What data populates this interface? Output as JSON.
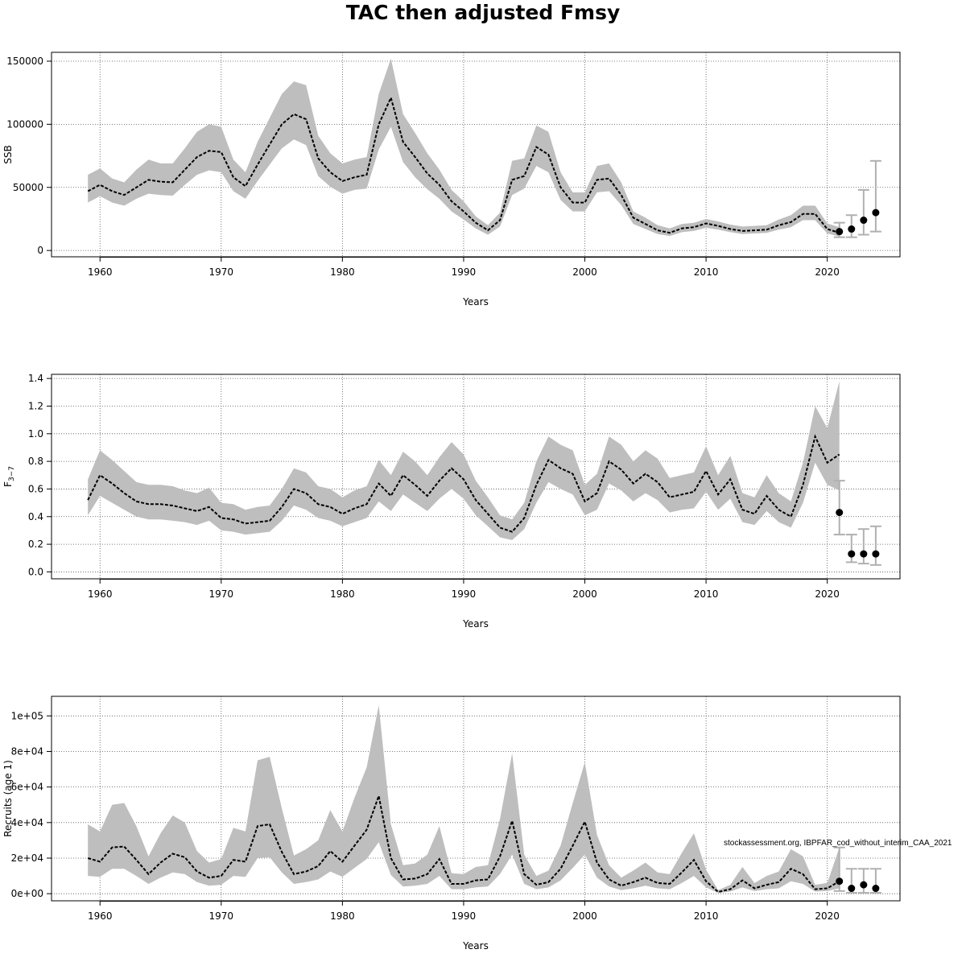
{
  "title": "TAC then adjusted Fmsy",
  "note": "stockassessment.org, IBPFAR_cod_without_interim_CAA_2021",
  "colors": {
    "band": "#bebebe",
    "line": "#000000",
    "grid": "#555555",
    "errorbar": "#b0b0b0",
    "point": "#000000"
  },
  "chart_data": [
    {
      "type": "line",
      "xlabel": "Years",
      "ylabel": "SSB",
      "xlim": [
        1956,
        2026
      ],
      "ylim": [
        -5000,
        157000
      ],
      "xticks": [
        1960,
        1970,
        1980,
        1990,
        2000,
        2010,
        2020
      ],
      "yticks": [
        0,
        50000,
        100000,
        150000
      ],
      "ytick_labels": [
        "0",
        "50000",
        "100000",
        "150000"
      ],
      "x": [
        1959,
        1960,
        1961,
        1962,
        1963,
        1964,
        1965,
        1966,
        1967,
        1968,
        1969,
        1970,
        1971,
        1972,
        1973,
        1974,
        1975,
        1976,
        1977,
        1978,
        1979,
        1980,
        1981,
        1982,
        1983,
        1984,
        1985,
        1986,
        1987,
        1988,
        1989,
        1990,
        1991,
        1992,
        1993,
        1994,
        1995,
        1996,
        1997,
        1998,
        1999,
        2000,
        2001,
        2002,
        2003,
        2004,
        2005,
        2006,
        2007,
        2008,
        2009,
        2010,
        2011,
        2012,
        2013,
        2014,
        2015,
        2016,
        2017,
        2018,
        2019,
        2020,
        2021
      ],
      "estimate": [
        47000,
        52000,
        47000,
        44000,
        50000,
        56000,
        54500,
        54000,
        64000,
        74000,
        79000,
        78000,
        58000,
        51000,
        68000,
        84000,
        100000,
        108000,
        104000,
        73000,
        62000,
        55000,
        58000,
        60000,
        100000,
        121000,
        86000,
        74000,
        61000,
        52000,
        39000,
        31000,
        22000,
        16000,
        24000,
        56000,
        59000,
        82000,
        76000,
        50000,
        38000,
        38000,
        56000,
        57000,
        44000,
        26000,
        21000,
        16000,
        14000,
        17500,
        18500,
        21500,
        19500,
        17000,
        15500,
        16000,
        16500,
        20000,
        22500,
        29000,
        29000,
        17000,
        14000
      ],
      "lower": [
        38000,
        43000,
        38000,
        35500,
        41000,
        45000,
        44000,
        43500,
        52000,
        60000,
        63500,
        62000,
        47000,
        41000,
        55000,
        68000,
        81000,
        88000,
        83500,
        59000,
        50500,
        45000,
        48000,
        49000,
        80000,
        98000,
        70000,
        58000,
        48500,
        41000,
        31000,
        24500,
        17500,
        12500,
        19000,
        44000,
        49000,
        67000,
        62000,
        40000,
        31000,
        31000,
        46000,
        47000,
        36000,
        21000,
        17000,
        13000,
        11500,
        14500,
        15500,
        18000,
        16500,
        14500,
        13000,
        13500,
        14000,
        16500,
        18500,
        24000,
        24000,
        13500,
        11000
      ],
      "upper": [
        60000,
        65000,
        57000,
        54000,
        64000,
        72000,
        69000,
        69000,
        81000,
        94000,
        100000,
        98000,
        72000,
        62000,
        86000,
        105000,
        124000,
        134000,
        131000,
        91000,
        77000,
        69000,
        72000,
        74000,
        124000,
        152000,
        108000,
        93000,
        77000,
        64000,
        48000,
        39000,
        27000,
        20000,
        30000,
        71000,
        73000,
        99000,
        94000,
        62000,
        46000,
        46000,
        67000,
        69000,
        54000,
        31000,
        26000,
        20000,
        17500,
        21000,
        22000,
        25000,
        23000,
        20500,
        19000,
        19500,
        20000,
        24500,
        28000,
        35500,
        35500,
        21500,
        18500
      ],
      "forecast": {
        "x": [
          2021,
          2022,
          2023,
          2024
        ],
        "y": [
          15000,
          17000,
          24000,
          30000
        ],
        "low": [
          10500,
          10500,
          12500,
          15000
        ],
        "high": [
          22000,
          28000,
          48000,
          71000
        ]
      }
    },
    {
      "type": "line",
      "xlabel": "Years",
      "ylabel": "F",
      "ylabel_subscript": "3−7",
      "xlim": [
        1956,
        2026
      ],
      "ylim": [
        -0.05,
        1.43
      ],
      "xticks": [
        1960,
        1970,
        1980,
        1990,
        2000,
        2010,
        2020
      ],
      "yticks": [
        0.0,
        0.2,
        0.4,
        0.6,
        0.8,
        1.0,
        1.2,
        1.4
      ],
      "ytick_labels": [
        "0.0",
        "0.2",
        "0.4",
        "0.6",
        "0.8",
        "1.0",
        "1.2",
        "1.4"
      ],
      "x": [
        1959,
        1960,
        1961,
        1962,
        1963,
        1964,
        1965,
        1966,
        1967,
        1968,
        1969,
        1970,
        1971,
        1972,
        1973,
        1974,
        1975,
        1976,
        1977,
        1978,
        1979,
        1980,
        1981,
        1982,
        1983,
        1984,
        1985,
        1986,
        1987,
        1988,
        1989,
        1990,
        1991,
        1992,
        1993,
        1994,
        1995,
        1996,
        1997,
        1998,
        1999,
        2000,
        2001,
        2002,
        2003,
        2004,
        2005,
        2006,
        2007,
        2008,
        2009,
        2010,
        2011,
        2012,
        2013,
        2014,
        2015,
        2016,
        2017,
        2018,
        2019,
        2020,
        2021
      ],
      "estimate": [
        0.52,
        0.7,
        0.64,
        0.57,
        0.51,
        0.49,
        0.49,
        0.48,
        0.46,
        0.44,
        0.47,
        0.39,
        0.38,
        0.35,
        0.36,
        0.37,
        0.47,
        0.6,
        0.57,
        0.49,
        0.47,
        0.42,
        0.46,
        0.49,
        0.64,
        0.55,
        0.7,
        0.63,
        0.55,
        0.66,
        0.75,
        0.67,
        0.52,
        0.42,
        0.32,
        0.29,
        0.39,
        0.63,
        0.81,
        0.75,
        0.71,
        0.51,
        0.57,
        0.8,
        0.74,
        0.64,
        0.71,
        0.65,
        0.54,
        0.56,
        0.58,
        0.73,
        0.56,
        0.67,
        0.45,
        0.42,
        0.55,
        0.45,
        0.4,
        0.63,
        0.98,
        0.79,
        0.85
      ],
      "lower": [
        0.41,
        0.55,
        0.5,
        0.45,
        0.4,
        0.38,
        0.38,
        0.37,
        0.36,
        0.34,
        0.37,
        0.3,
        0.29,
        0.27,
        0.28,
        0.29,
        0.37,
        0.48,
        0.45,
        0.39,
        0.37,
        0.33,
        0.36,
        0.39,
        0.51,
        0.44,
        0.56,
        0.5,
        0.44,
        0.53,
        0.6,
        0.53,
        0.41,
        0.33,
        0.25,
        0.23,
        0.31,
        0.5,
        0.65,
        0.6,
        0.56,
        0.41,
        0.45,
        0.64,
        0.59,
        0.51,
        0.57,
        0.52,
        0.43,
        0.45,
        0.46,
        0.58,
        0.45,
        0.53,
        0.36,
        0.34,
        0.44,
        0.36,
        0.32,
        0.5,
        0.79,
        0.63,
        0.59
      ],
      "upper": [
        0.67,
        0.88,
        0.81,
        0.73,
        0.65,
        0.63,
        0.63,
        0.62,
        0.59,
        0.57,
        0.61,
        0.5,
        0.49,
        0.45,
        0.47,
        0.48,
        0.6,
        0.75,
        0.72,
        0.62,
        0.6,
        0.54,
        0.59,
        0.62,
        0.81,
        0.7,
        0.87,
        0.8,
        0.7,
        0.83,
        0.94,
        0.85,
        0.66,
        0.54,
        0.41,
        0.38,
        0.5,
        0.8,
        0.98,
        0.92,
        0.88,
        0.63,
        0.71,
        0.98,
        0.92,
        0.8,
        0.88,
        0.82,
        0.68,
        0.7,
        0.72,
        0.91,
        0.7,
        0.84,
        0.57,
        0.54,
        0.7,
        0.57,
        0.51,
        0.79,
        1.2,
        1.04,
        1.38
      ],
      "forecast": {
        "x": [
          2021,
          2022,
          2023,
          2024
        ],
        "y": [
          0.43,
          0.13,
          0.13,
          0.13
        ],
        "low": [
          0.27,
          0.07,
          0.06,
          0.05
        ],
        "high": [
          0.66,
          0.27,
          0.31,
          0.33
        ]
      }
    },
    {
      "type": "line",
      "xlabel": "Years",
      "ylabel": "Recruits (age 1)",
      "xlim": [
        1956,
        2026
      ],
      "ylim": [
        -4000,
        111000
      ],
      "xticks": [
        1960,
        1970,
        1980,
        1990,
        2000,
        2010,
        2020
      ],
      "yticks": [
        0,
        20000,
        40000,
        60000,
        80000,
        100000
      ],
      "ytick_labels": [
        "0e+00",
        "2e+04",
        "4e+04",
        "6e+04",
        "8e+04",
        "1e+05"
      ],
      "x": [
        1959,
        1960,
        1961,
        1962,
        1963,
        1964,
        1965,
        1966,
        1967,
        1968,
        1969,
        1970,
        1971,
        1972,
        1973,
        1974,
        1975,
        1976,
        1977,
        1978,
        1979,
        1980,
        1981,
        1982,
        1983,
        1984,
        1985,
        1986,
        1987,
        1988,
        1989,
        1990,
        1991,
        1992,
        1993,
        1994,
        1995,
        1996,
        1997,
        1998,
        1999,
        2000,
        2001,
        2002,
        2003,
        2004,
        2005,
        2006,
        2007,
        2008,
        2009,
        2010,
        2011,
        2012,
        2013,
        2014,
        2015,
        2016,
        2017,
        2018,
        2019,
        2020,
        2021
      ],
      "estimate": [
        20000,
        18000,
        26000,
        26500,
        19000,
        11000,
        17500,
        22500,
        20500,
        12500,
        9000,
        10000,
        19000,
        18000,
        38000,
        39000,
        23500,
        11000,
        12500,
        15500,
        24000,
        18000,
        27000,
        36000,
        55000,
        20000,
        8000,
        8500,
        11000,
        19500,
        5500,
        5500,
        7500,
        8000,
        21000,
        41000,
        11000,
        5000,
        6500,
        14000,
        27000,
        40500,
        17500,
        8000,
        4500,
        6500,
        9000,
        6000,
        5500,
        12000,
        19000,
        7000,
        1000,
        2500,
        7500,
        3000,
        5000,
        6500,
        14000,
        11000,
        2500,
        3000,
        7000
      ],
      "lower": [
        10000,
        9500,
        14000,
        14000,
        10000,
        5500,
        9000,
        12000,
        11000,
        6500,
        4500,
        5000,
        10000,
        9500,
        20000,
        20500,
        12000,
        5500,
        6500,
        8000,
        12500,
        9500,
        14500,
        19500,
        29000,
        10500,
        4000,
        4500,
        5500,
        10000,
        2500,
        2500,
        3500,
        4000,
        11000,
        22000,
        5500,
        2500,
        3500,
        7500,
        14500,
        22000,
        9000,
        4000,
        2000,
        3000,
        4500,
        3000,
        2500,
        6000,
        10000,
        3500,
        500,
        1200,
        3500,
        1500,
        2500,
        3000,
        7000,
        5500,
        1200,
        1500,
        3000
      ],
      "upper": [
        39000,
        35000,
        50000,
        51000,
        38000,
        21000,
        34000,
        44000,
        40000,
        24000,
        17500,
        19500,
        37000,
        35000,
        75000,
        77000,
        48000,
        21500,
        25000,
        30000,
        47000,
        35000,
        54000,
        71000,
        106000,
        39000,
        16000,
        17000,
        22000,
        38000,
        11500,
        11000,
        15000,
        16000,
        42000,
        79000,
        22000,
        10000,
        13000,
        27000,
        51000,
        74000,
        33000,
        16000,
        9000,
        13000,
        17500,
        12000,
        11000,
        23000,
        34000,
        13500,
        2000,
        5000,
        15000,
        6000,
        10000,
        12500,
        25000,
        21000,
        5000,
        6000,
        26000
      ],
      "forecast": {
        "x": [
          2021,
          2022,
          2023,
          2024
        ],
        "y": [
          7000,
          3000,
          5000,
          3000
        ],
        "low": [
          1500,
          500,
          500,
          500
        ],
        "high": [
          26000,
          14000,
          14000,
          14000
        ]
      }
    }
  ]
}
